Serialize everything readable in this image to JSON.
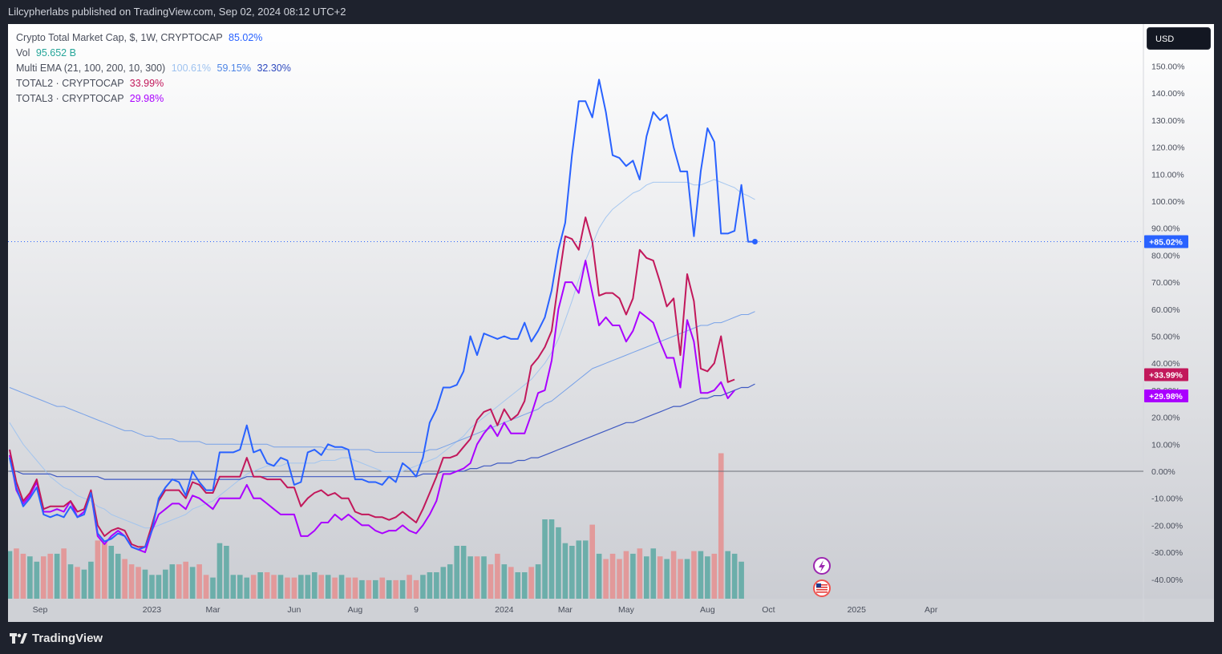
{
  "header": {
    "publisher": "Lilcypherlabs published on TradingView.com, Sep 02, 2024 08:12 UTC+2"
  },
  "currency_button": {
    "label": "USD"
  },
  "footer": {
    "brand": "TradingView"
  },
  "legend": {
    "main": {
      "label": "Crypto Total Market Cap, $, 1W, CRYPTOCAP",
      "value": "85.02%"
    },
    "vol": {
      "label": "Vol",
      "value": "95.652 B"
    },
    "ema": {
      "label": "Multi EMA (21, 100, 200, 10, 300)",
      "v1": "100.61%",
      "v2": "59.15%",
      "v3": "32.30%"
    },
    "total2": {
      "label": "TOTAL2 · CRYPTOCAP",
      "value": "33.99%"
    },
    "total3": {
      "label": "TOTAL3 · CRYPTOCAP",
      "value": "29.98%"
    }
  },
  "colors": {
    "total": "#2962ff",
    "total2": "#c2185b",
    "total3": "#aa00ff",
    "ema_light": "#9fc3f0",
    "ema_mid": "#6e9be8",
    "ema_dark": "#2f4bbf",
    "vol_up": "#5aa8a2",
    "vol_down": "#e58f8f"
  },
  "chart_data": {
    "type": "line",
    "title": "Crypto Total Market Cap, $, 1W, CRYPTOCAP",
    "y_axis": {
      "ylim": [
        -48,
        160
      ],
      "ticks": [
        "150.00%",
        "140.00%",
        "130.00%",
        "120.00%",
        "110.00%",
        "100.00%",
        "90.00%",
        "80.00%",
        "70.00%",
        "60.00%",
        "50.00%",
        "40.00%",
        "30.00%",
        "20.00%",
        "10.00%",
        "0.00%",
        "-10.00%",
        "-20.00%",
        "-30.00%",
        "-40.00%"
      ],
      "tick_values": [
        150,
        140,
        130,
        120,
        110,
        100,
        90,
        80,
        70,
        60,
        50,
        40,
        30,
        20,
        10,
        0,
        -10,
        -20,
        -30,
        -40
      ]
    },
    "x_axis": {
      "labels": [
        "Sep",
        "2023",
        "Mar",
        "Jun",
        "Aug",
        "9",
        "2024",
        "Mar",
        "May",
        "Aug",
        "Oct",
        "2025",
        "Apr"
      ],
      "label_index": [
        4.5,
        21,
        30,
        42,
        51,
        60,
        73,
        82,
        91,
        103,
        112,
        125,
        136
      ],
      "xlim": [
        0,
        154
      ]
    },
    "price_labels": [
      {
        "text": "+85.02%",
        "value": 85.02,
        "color": "#2962ff"
      },
      {
        "text": "+33.99%",
        "value": 33.99,
        "color": "#c2185b"
      },
      {
        "text": "+29.98%",
        "value": 29.98,
        "color": "#aa00ff"
      }
    ],
    "series": [
      {
        "name": "Crypto Total Market Cap",
        "color": "#2962ff",
        "values": [
          5,
          -6,
          -13,
          -10,
          -6,
          -16,
          -17,
          -16,
          -17,
          -13,
          -17,
          -16,
          -8,
          -23,
          -26,
          -25,
          -23,
          -24,
          -28,
          -29,
          -28,
          -22,
          -10,
          -6,
          -3,
          -4,
          -9,
          0,
          -4,
          -7,
          -7,
          7,
          7,
          7,
          8,
          17,
          7,
          8,
          3,
          2,
          5,
          4,
          -5,
          -4,
          7,
          8,
          6,
          10,
          9,
          9,
          8,
          -3,
          -3,
          -4,
          -4,
          -5,
          -2,
          -4,
          3,
          1,
          -2,
          5,
          18,
          23,
          31,
          31,
          32,
          37,
          50,
          43,
          51,
          50,
          49,
          50,
          49,
          49,
          55,
          48,
          52,
          57,
          67,
          82,
          92,
          117,
          137,
          137,
          131,
          145,
          133,
          117,
          116,
          113,
          115,
          108,
          124,
          133,
          130,
          132,
          120,
          111,
          111,
          87,
          111,
          127,
          122,
          88,
          88,
          89,
          106,
          85,
          85.02
        ]
      },
      {
        "name": "TOTAL2 · CRYPTOCAP",
        "color": "#c2185b",
        "values": [
          8,
          -4,
          -11,
          -8,
          -3,
          -14,
          -13,
          -13,
          -13,
          -11,
          -15,
          -14,
          -7,
          -20,
          -24,
          -22,
          -21,
          -22,
          -27,
          -28,
          -28,
          -20,
          -11,
          -7,
          -7,
          -7,
          -10,
          -4,
          -5,
          -8,
          -8,
          -2,
          -2,
          -2,
          -2,
          5,
          -2,
          -2,
          -3,
          -3,
          -3,
          -6,
          -6,
          -13,
          -10,
          -8,
          -7,
          -9,
          -8,
          -10,
          -10,
          -15,
          -16,
          -16,
          -17,
          -17,
          -18,
          -17,
          -15,
          -17,
          -19,
          -14,
          -8,
          -2,
          5,
          5,
          6,
          9,
          12,
          19,
          22,
          23,
          17,
          23,
          19,
          21,
          26,
          39,
          42,
          46,
          52,
          70,
          87,
          86,
          82,
          94,
          85,
          65,
          66,
          66,
          64,
          58,
          64,
          82,
          79,
          78,
          70,
          61,
          64,
          43,
          73,
          63,
          38,
          37,
          40,
          50,
          33,
          33.99
        ]
      },
      {
        "name": "TOTAL3 · CRYPTOCAP",
        "color": "#aa00ff",
        "values": [
          6,
          -7,
          -12,
          -9,
          -4,
          -15,
          -15,
          -14,
          -15,
          -11,
          -17,
          -15,
          -8,
          -24,
          -27,
          -24,
          -22,
          -24,
          -28,
          -29,
          -30,
          -22,
          -16,
          -14,
          -12,
          -12,
          -14,
          -9,
          -10,
          -12,
          -14,
          -10,
          -10,
          -10,
          -10,
          -5,
          -10,
          -10,
          -12,
          -14,
          -16,
          -16,
          -16,
          -24,
          -24,
          -22,
          -19,
          -19,
          -16,
          -18,
          -16,
          -18,
          -20,
          -20,
          -22,
          -23,
          -22,
          -22,
          -20,
          -22,
          -23,
          -20,
          -16,
          -11,
          -1,
          -1,
          0,
          1,
          3,
          10,
          14,
          17,
          13,
          18,
          14,
          14,
          14,
          21,
          29,
          30,
          41,
          60,
          70,
          70,
          66,
          78,
          66,
          54,
          57,
          54,
          54,
          48,
          52,
          59,
          57,
          55,
          48,
          42,
          42,
          31,
          56,
          48,
          29,
          29,
          30,
          33,
          27,
          29.98
        ]
      },
      {
        "name": "EMA 21",
        "color": "#9fc3f0",
        "values": [
          18,
          14,
          10,
          7,
          4,
          1,
          -2,
          -4,
          -6,
          -7,
          -9,
          -10,
          -11,
          -13,
          -14,
          -16,
          -17,
          -18,
          -19,
          -20,
          -21,
          -21,
          -20,
          -19,
          -18,
          -17,
          -16,
          -14,
          -13,
          -12,
          -11,
          -9,
          -7,
          -5,
          -3,
          -1,
          0,
          1,
          2,
          2,
          2,
          3,
          3,
          3,
          3,
          3,
          4,
          4,
          4,
          5,
          5,
          4,
          3,
          2,
          1,
          0,
          0,
          0,
          0,
          1,
          2,
          3,
          4,
          5,
          7,
          9,
          11,
          13,
          16,
          18,
          20,
          22,
          24,
          26,
          28,
          30,
          32,
          34,
          37,
          40,
          44,
          49,
          56,
          63,
          71,
          78,
          84,
          90,
          94,
          97,
          99,
          101,
          103,
          104,
          106,
          107,
          107,
          107,
          107,
          107,
          107,
          106,
          106,
          107,
          108,
          107,
          106,
          105,
          103,
          102,
          100.61
        ]
      },
      {
        "name": "EMA 100",
        "color": "#6e9be8",
        "values": [
          31,
          30,
          29,
          28,
          27,
          26,
          25,
          24,
          24,
          23,
          22,
          21,
          20,
          19,
          18,
          17,
          16,
          15,
          15,
          14,
          13,
          13,
          12,
          12,
          12,
          11,
          11,
          11,
          11,
          10,
          10,
          10,
          10,
          10,
          10,
          10,
          10,
          10,
          10,
          9,
          9,
          9,
          9,
          9,
          9,
          9,
          9,
          8,
          8,
          8,
          8,
          8,
          8,
          8,
          7,
          7,
          7,
          7,
          7,
          7,
          7,
          7,
          8,
          8,
          9,
          10,
          11,
          12,
          13,
          14,
          15,
          16,
          17,
          18,
          19,
          20,
          21,
          22,
          23,
          25,
          26,
          28,
          30,
          32,
          34,
          36,
          38,
          39,
          40,
          41,
          42,
          43,
          44,
          45,
          46,
          47,
          48,
          49,
          50,
          51,
          52,
          53,
          54,
          54,
          55,
          55,
          56,
          57,
          58,
          58,
          59.15
        ]
      },
      {
        "name": "EMA 200",
        "color": "#2f4bbf",
        "values": [
          0,
          0,
          -1,
          -1,
          -1,
          -1,
          -1,
          -2,
          -2,
          -2,
          -2,
          -2,
          -2,
          -2,
          -3,
          -3,
          -3,
          -3,
          -3,
          -3,
          -3,
          -3,
          -3,
          -3,
          -3,
          -3,
          -3,
          -3,
          -3,
          -3,
          -3,
          -3,
          -3,
          -3,
          -3,
          -2,
          -2,
          -2,
          -2,
          -2,
          -2,
          -2,
          -2,
          -2,
          -2,
          -2,
          -2,
          -2,
          -2,
          -2,
          -2,
          -2,
          -2,
          -2,
          -2,
          -2,
          -2,
          -2,
          -2,
          -2,
          -2,
          -1,
          -1,
          -1,
          0,
          0,
          0,
          0,
          1,
          1,
          2,
          2,
          3,
          3,
          3,
          4,
          4,
          5,
          5,
          6,
          7,
          8,
          9,
          10,
          11,
          12,
          13,
          14,
          15,
          16,
          17,
          18,
          18,
          19,
          20,
          21,
          22,
          23,
          24,
          24,
          25,
          26,
          27,
          27,
          28,
          28,
          29,
          30,
          31,
          31,
          32.3
        ]
      }
    ],
    "volume": {
      "ylim": [
        0,
        100
      ],
      "values": [
        18,
        19,
        17,
        16,
        14,
        16,
        17,
        17,
        19,
        13,
        12,
        11,
        14,
        22,
        21,
        20,
        17,
        15,
        13,
        12,
        11,
        9,
        9,
        11,
        13,
        13,
        14,
        12,
        13,
        9,
        8,
        21,
        20,
        9,
        9,
        8,
        9,
        10,
        10,
        9,
        9,
        8,
        8,
        9,
        9,
        10,
        9,
        9,
        8,
        9,
        8,
        8,
        7,
        7,
        7,
        8,
        7,
        7,
        7,
        9,
        7,
        9,
        10,
        10,
        12,
        13,
        20,
        20,
        16,
        16,
        16,
        13,
        17,
        13,
        12,
        10,
        10,
        12,
        13,
        30,
        30,
        27,
        21,
        20,
        22,
        22,
        28,
        17,
        15,
        17,
        15,
        18,
        17,
        19,
        16,
        19,
        16,
        15,
        18,
        15,
        15,
        18,
        18,
        16,
        17,
        55,
        18,
        17,
        14
      ]
    }
  }
}
